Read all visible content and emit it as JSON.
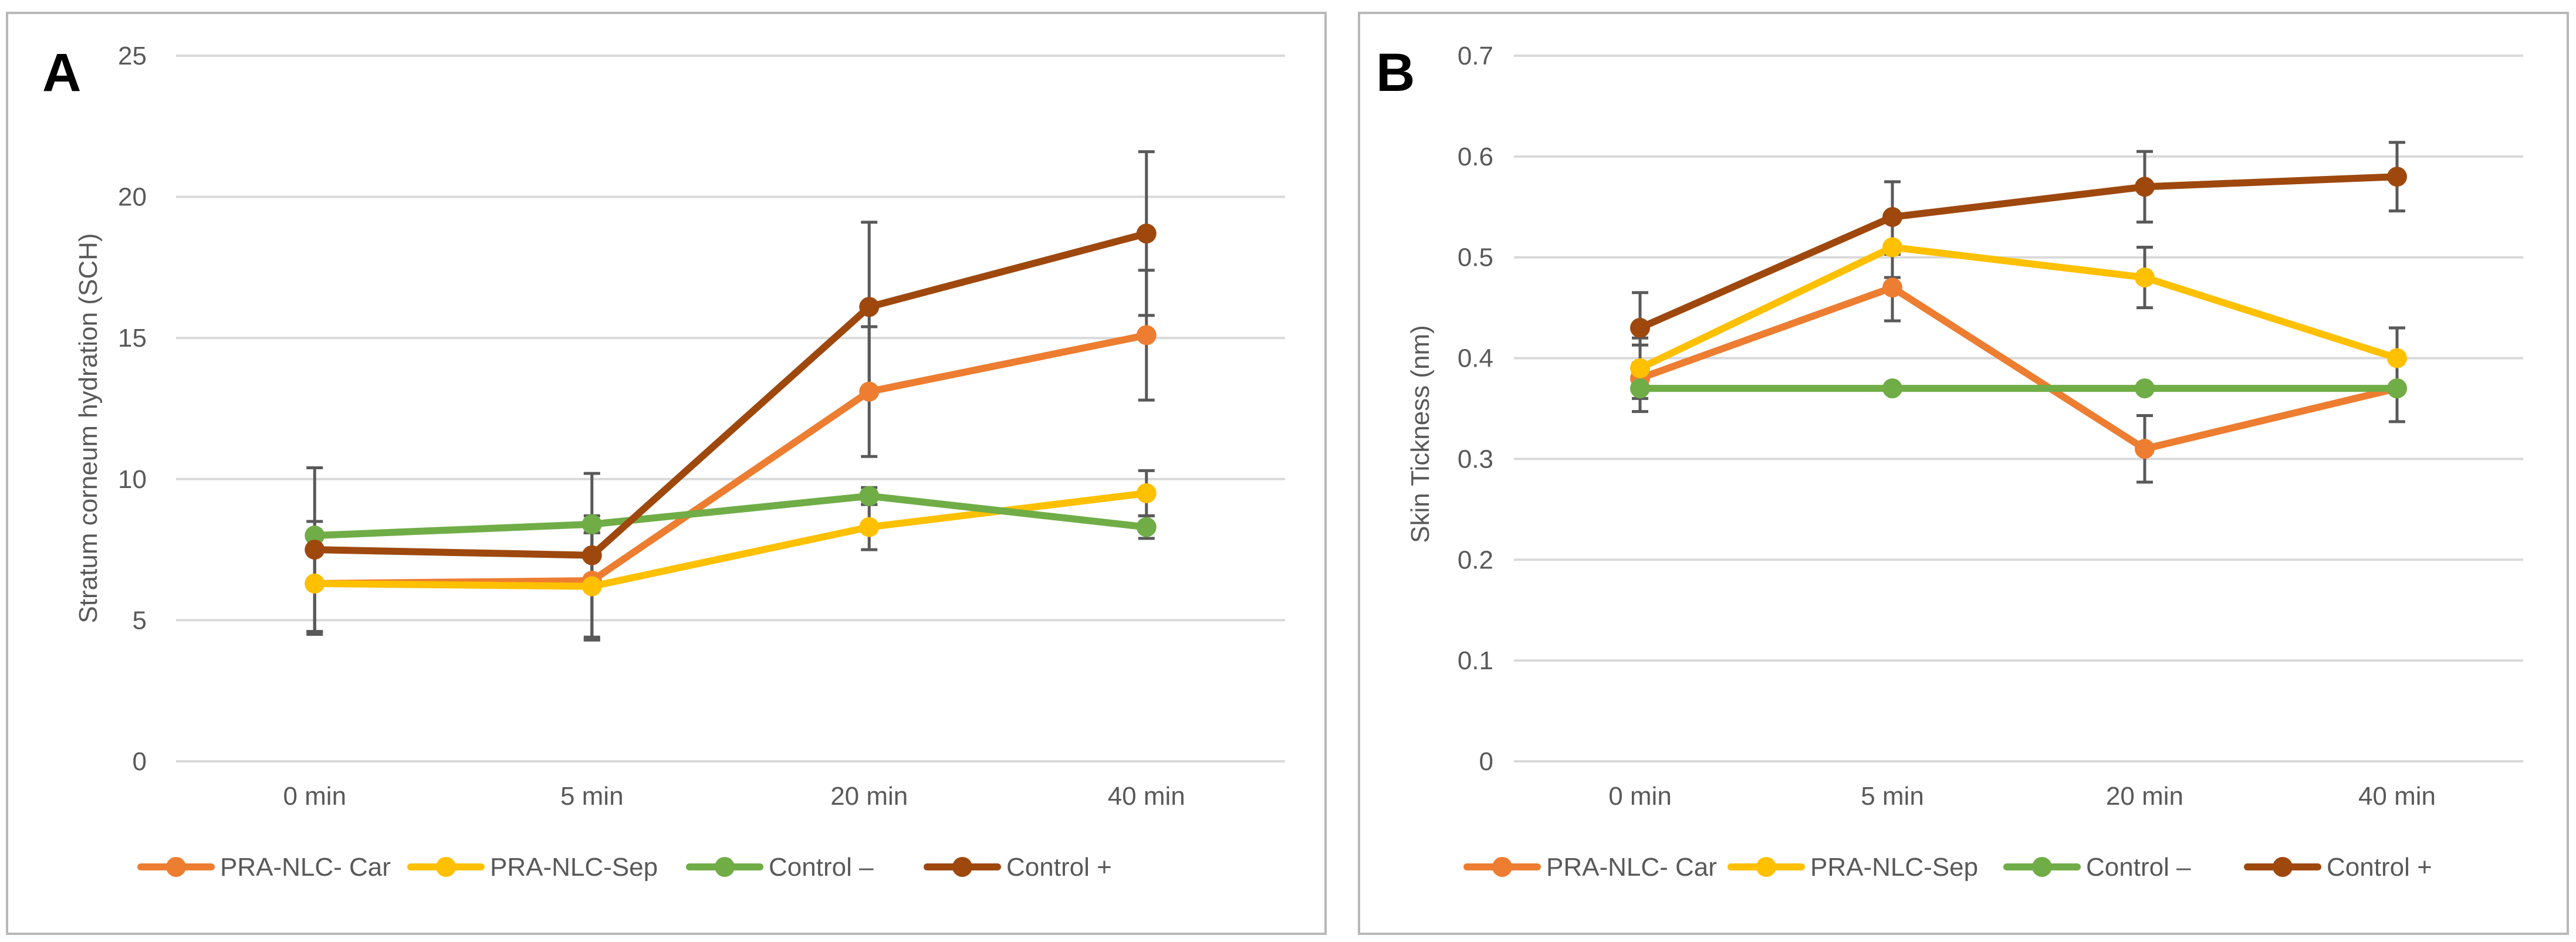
{
  "chart_data": [
    {
      "type": "line",
      "panel_label": "A",
      "categories": [
        "0 min",
        "5 min",
        "20 min",
        "40 min"
      ],
      "ylabel": "Stratum corneum hydration (SCH)",
      "xlabel": "",
      "ylim": [
        0,
        25
      ],
      "yticks": [
        "0",
        "5",
        "10",
        "15",
        "20",
        "25"
      ],
      "grid": true,
      "legend_position": "bottom",
      "series": [
        {
          "name": "PRA-NLC- Car",
          "color": "#ED7D31",
          "values": [
            6.3,
            6.4,
            13.1,
            15.1
          ],
          "errors": [
            1.8,
            2.1,
            2.3,
            2.3
          ]
        },
        {
          "name": "PRA-NLC-Sep",
          "color": "#FFC000",
          "values": [
            6.3,
            6.2,
            8.3,
            9.5
          ],
          "errors": [
            1.7,
            1.9,
            0.8,
            0.8
          ]
        },
        {
          "name": "Control –",
          "color": "#70AD47",
          "values": [
            8.0,
            8.4,
            9.4,
            8.3
          ],
          "errors": [
            0.5,
            0.3,
            0.3,
            0.4
          ]
        },
        {
          "name": "Control +",
          "color": "#9E480E",
          "values": [
            7.5,
            7.3,
            16.1,
            18.7
          ],
          "errors": [
            2.9,
            2.9,
            3.0,
            2.9
          ]
        }
      ]
    },
    {
      "type": "line",
      "panel_label": "B",
      "categories": [
        "0 min",
        "5 min",
        "20 min",
        "40 min"
      ],
      "ylabel": "Skin Tickness (nm)",
      "xlabel": "",
      "ylim": [
        0,
        0.7
      ],
      "yticks": [
        "0",
        "0.1",
        "0.2",
        "0.3",
        "0.4",
        "0.5",
        "0.6",
        "0.7"
      ],
      "grid": true,
      "legend_position": "bottom",
      "series": [
        {
          "name": "PRA-NLC- Car",
          "color": "#ED7D31",
          "values": [
            0.38,
            0.47,
            0.31,
            0.37
          ],
          "errors": [
            0.033,
            0.033,
            0.033,
            0.033
          ]
        },
        {
          "name": "PRA-NLC-Sep",
          "color": "#FFC000",
          "values": [
            0.39,
            0.51,
            0.48,
            0.4
          ],
          "errors": [
            0.03,
            0.03,
            0.03,
            0.03
          ]
        },
        {
          "name": "Control –",
          "color": "#70AD47",
          "values": [
            0.37,
            0.37,
            0.37,
            0.37
          ],
          "errors": [
            0,
            0,
            0,
            0
          ]
        },
        {
          "name": "Control +",
          "color": "#9E480E",
          "values": [
            0.43,
            0.54,
            0.57,
            0.58
          ],
          "errors": [
            0.035,
            0.035,
            0.035,
            0.034
          ]
        }
      ]
    }
  ]
}
